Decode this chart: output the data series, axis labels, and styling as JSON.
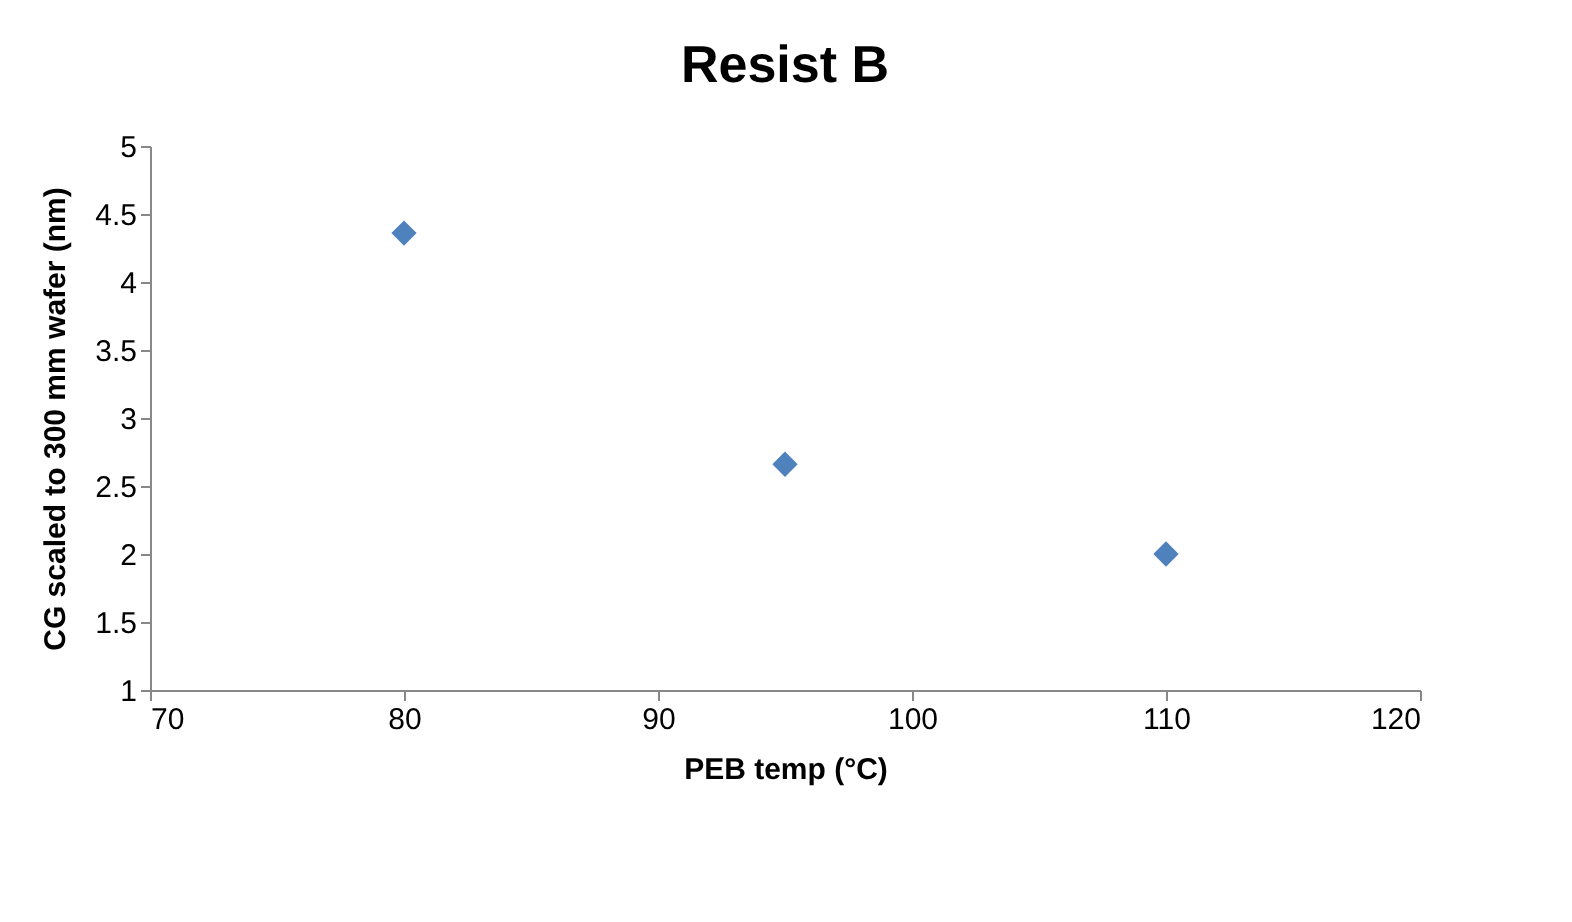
{
  "chart_data": {
    "type": "scatter",
    "title": "Resist B",
    "xlabel": "PEB temp (°C)",
    "ylabel": "CG scaled to 300 mm wafer (nm)",
    "x": [
      80,
      95,
      110
    ],
    "series": [
      {
        "color": "#4f81bd",
        "values": [
          4.36,
          2.66,
          2.0
        ]
      }
    ],
    "xlim": [
      70,
      120
    ],
    "xticks": [
      70,
      80,
      90,
      100,
      110,
      120
    ],
    "ylim": [
      1,
      5
    ],
    "yticks": [
      1,
      1.5,
      2,
      2.5,
      3,
      3.5,
      4,
      4.5,
      5
    ],
    "marker": "diamond",
    "grid": false
  }
}
